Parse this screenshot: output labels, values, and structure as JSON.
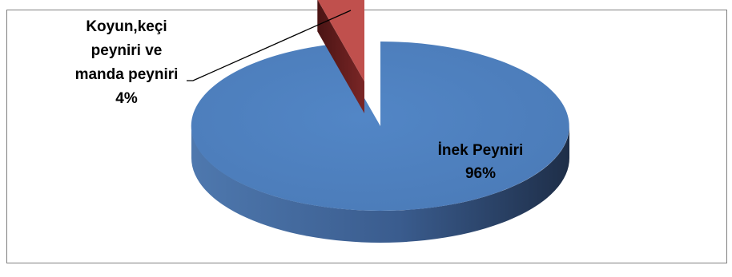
{
  "chart_data": {
    "type": "pie",
    "title": "",
    "three_d": true,
    "exploded_slice": "Koyun,keçi peyniri ve manda peyniri",
    "slices": [
      {
        "name": "İnek Peyniri",
        "value": 96,
        "value_label": "96%",
        "label_lines": [
          "İnek Peyniri"
        ],
        "color": "#4F81BD"
      },
      {
        "name": "Koyun,keçi peyniri ve manda peyniri",
        "value": 4,
        "value_label": "4%",
        "label_lines": [
          "Koyun,keçi",
          "peyniri ve",
          "manda peyniri"
        ],
        "color": "#C0504D"
      }
    ],
    "legend": "none",
    "data_labels": "category and percentage",
    "leader_line": true
  }
}
